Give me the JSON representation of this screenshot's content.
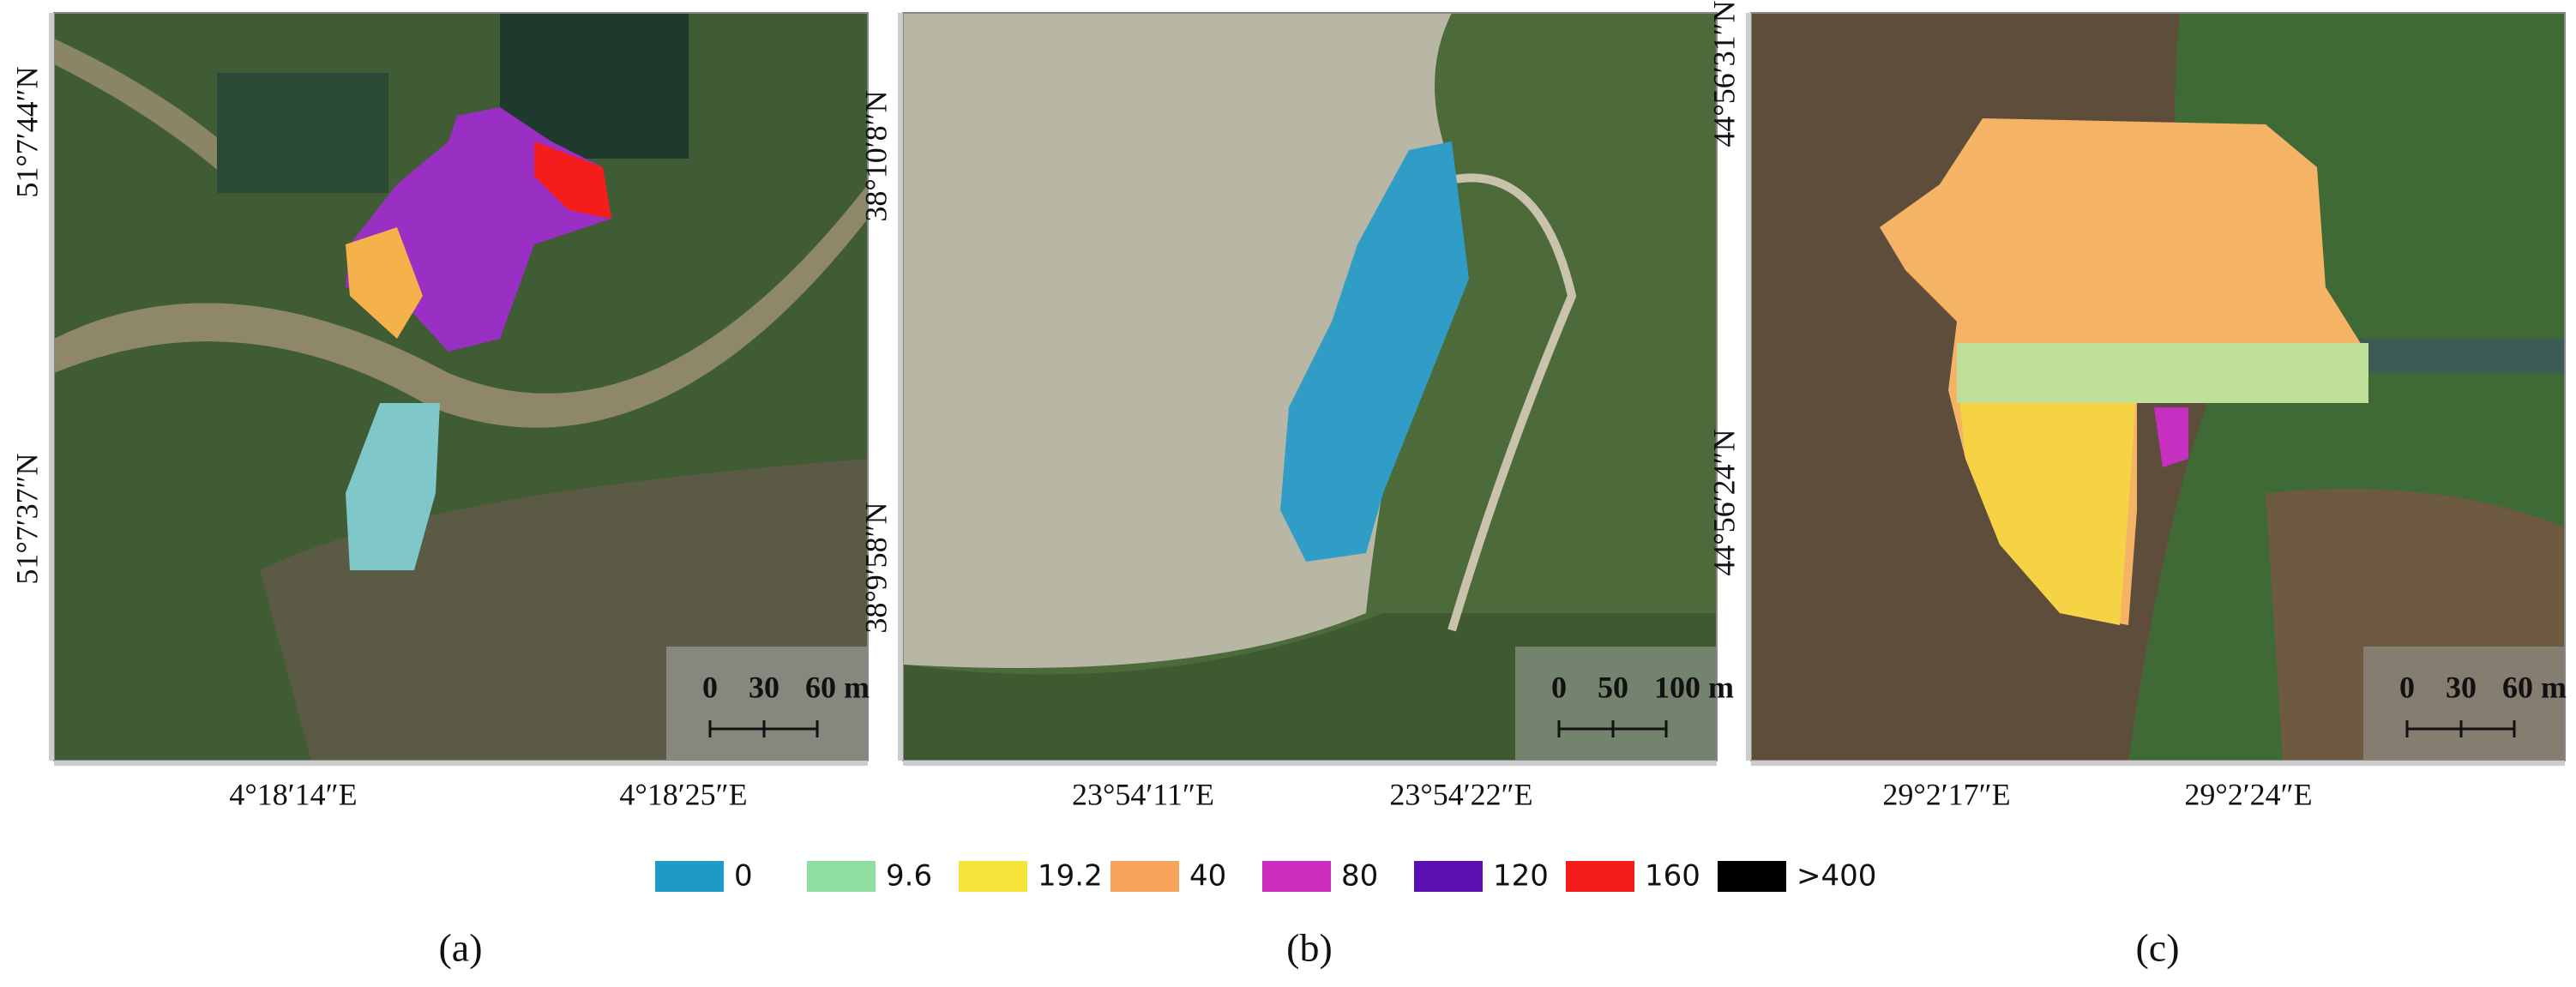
{
  "panels": [
    {
      "caption": "(a)",
      "lat_labels": [
        "51°7′44″N",
        "51°7′37″N"
      ],
      "lon_labels": [
        "4°18′14″E",
        "4°18′25″E"
      ],
      "scale_labels": [
        "0",
        "30",
        "60 m"
      ]
    },
    {
      "caption": "(b)",
      "lat_labels": [
        "38°10′8″N",
        "38°9′58″N"
      ],
      "lon_labels": [
        "23°54′11″E",
        "23°54′22″E"
      ],
      "scale_labels": [
        "0",
        "50",
        "100 m"
      ]
    },
    {
      "caption": "(c)",
      "lat_labels": [
        "44°56′31″N",
        "44°56′24″N"
      ],
      "lon_labels": [
        "29°2′17″E",
        "29°2′24″E"
      ],
      "scale_labels": [
        "0",
        "30",
        "60 m"
      ]
    }
  ],
  "legend": [
    {
      "label": "0",
      "color": "#1f9ac4"
    },
    {
      "label": "9.6",
      "color": "#8ede9f"
    },
    {
      "label": "19.2",
      "color": "#f5e33a"
    },
    {
      "label": "40",
      "color": "#f7a55a"
    },
    {
      "label": "80",
      "color": "#cc2fbf"
    },
    {
      "label": "120",
      "color": "#5b0fb0"
    },
    {
      "label": "160",
      "color": "#f51c1c"
    },
    {
      "label": ">400",
      "color": "#000000"
    }
  ]
}
